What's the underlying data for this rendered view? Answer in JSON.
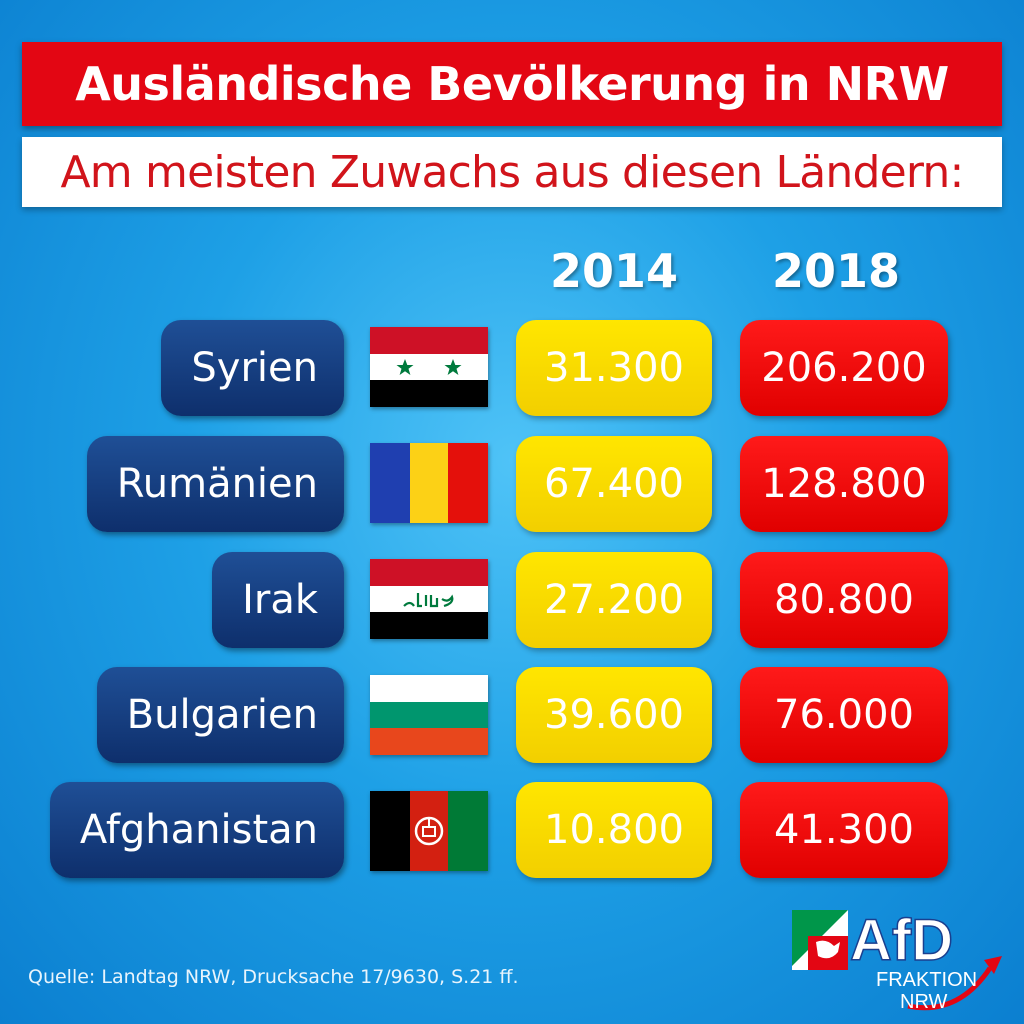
{
  "title": "Ausländische Bevölkerung in NRW",
  "subtitle": "Am meisten Zuwachs aus diesen Ländern:",
  "years": [
    "2014",
    "2018"
  ],
  "rows": [
    {
      "country": "Syrien",
      "flag_icon": "syria-flag-icon",
      "v2014": "31.300",
      "v2018": "206.200"
    },
    {
      "country": "Rumänien",
      "flag_icon": "romania-flag-icon",
      "v2014": "67.400",
      "v2018": "128.800"
    },
    {
      "country": "Irak",
      "flag_icon": "iraq-flag-icon",
      "v2014": "27.200",
      "v2018": "80.800"
    },
    {
      "country": "Bulgarien",
      "flag_icon": "bulgaria-flag-icon",
      "v2014": "39.600",
      "v2018": "76.000"
    },
    {
      "country": "Afghanistan",
      "flag_icon": "afghanistan-flag-icon",
      "v2014": "10.800",
      "v2018": "41.300"
    }
  ],
  "source": "Quelle: Landtag NRW, Drucksache 17/9630, S.21 ff.",
  "logo": {
    "brand": "AfD",
    "line1": "FRAKTION",
    "line2": "NRW"
  },
  "colors": {
    "red": "#e30613",
    "blue_pill": "#0e2f6c",
    "yellow": "#f2cf00",
    "background": "#1ea0e6"
  }
}
